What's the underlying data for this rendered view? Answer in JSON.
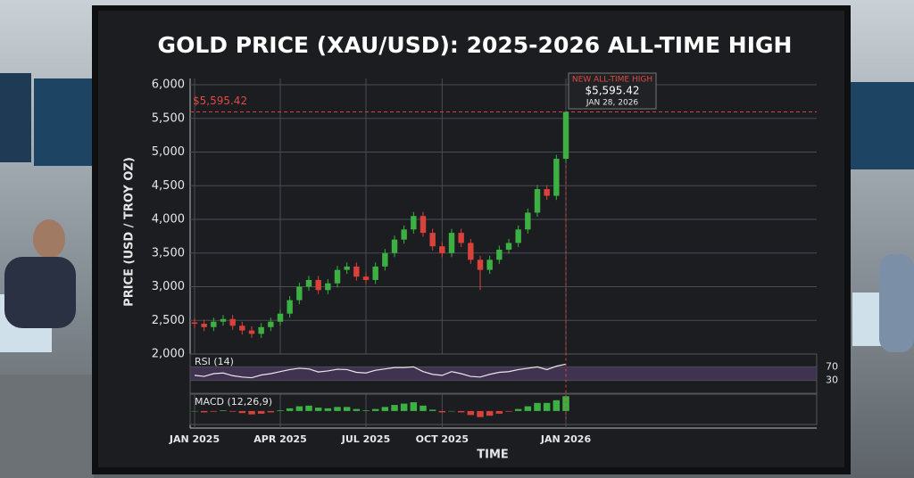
{
  "chart_data": {
    "type": "candlestick",
    "title": "GOLD PRICE (XAU/USD): 2025-2026 ALL-TIME HIGH",
    "y_label": "PRICE (USD / TROY OZ)",
    "x_label": "TIME",
    "categories": [
      "JAN 2025",
      null,
      null,
      null,
      null,
      null,
      null,
      null,
      null,
      "APR 2025",
      null,
      null,
      null,
      null,
      null,
      null,
      null,
      null,
      "JUL 2025",
      null,
      null,
      null,
      null,
      null,
      null,
      null,
      "OCT 2025",
      null,
      null,
      null,
      null,
      null,
      null,
      null,
      null,
      null,
      null,
      null,
      null,
      "JAN 2026"
    ],
    "open": [
      2470,
      2450,
      2400,
      2480,
      2520,
      2420,
      2350,
      2300,
      2400,
      2480,
      2600,
      2800,
      3000,
      3100,
      2950,
      3050,
      3250,
      3300,
      3150,
      3100,
      3300,
      3500,
      3700,
      3850,
      4050,
      3800,
      3600,
      3500,
      3800,
      3650,
      3400,
      3250,
      3400,
      3550,
      3650,
      3850,
      4100,
      4450,
      4350,
      4900
    ],
    "high": [
      2530,
      2510,
      2540,
      2580,
      2580,
      2480,
      2410,
      2460,
      2540,
      2660,
      2860,
      3060,
      3160,
      3160,
      3110,
      3310,
      3360,
      3360,
      3210,
      3360,
      3560,
      3760,
      3910,
      4110,
      4110,
      3860,
      3660,
      3860,
      3860,
      3710,
      3460,
      3460,
      3610,
      3710,
      3910,
      4160,
      4510,
      4510,
      4960,
      5595.42
    ],
    "low": [
      2390,
      2340,
      2340,
      2420,
      2360,
      2290,
      2240,
      2240,
      2340,
      2420,
      2540,
      2740,
      2940,
      2890,
      2890,
      2990,
      3190,
      3090,
      3040,
      3040,
      3240,
      3440,
      3640,
      3790,
      3740,
      3540,
      3440,
      3440,
      3590,
      3340,
      2950,
      3190,
      3340,
      3490,
      3590,
      3790,
      4040,
      4290,
      4290,
      4840
    ],
    "close": [
      2450,
      2400,
      2480,
      2520,
      2420,
      2350,
      2300,
      2400,
      2480,
      2600,
      2800,
      3000,
      3100,
      2950,
      3050,
      3250,
      3300,
      3150,
      3100,
      3300,
      3500,
      3700,
      3850,
      4050,
      3800,
      3600,
      3500,
      3800,
      3650,
      3400,
      3250,
      3400,
      3550,
      3650,
      3850,
      4100,
      4450,
      4350,
      4900,
      5595.42
    ],
    "up_color": "#3cb043",
    "down_color": "#d9423a",
    "ylim": [
      2000,
      6000
    ],
    "yticks": [
      {
        "value": 2000,
        "label": "2,000"
      },
      {
        "value": 2500,
        "label": "2,500"
      },
      {
        "value": 3000,
        "label": "3,000"
      },
      {
        "value": 3500,
        "label": "3,500"
      },
      {
        "value": 4000,
        "label": "4,000"
      },
      {
        "value": 4500,
        "label": "4,500"
      },
      {
        "value": 5000,
        "label": "5,000"
      },
      {
        "value": 5500,
        "label": "5,500"
      },
      {
        "value": 6000,
        "label": "6,000"
      }
    ],
    "grid": true,
    "ath": {
      "title": "NEW ALL-TIME HIGH",
      "value": 5595.42,
      "label": "$5,595.42",
      "date": "JAN 28, 2026"
    },
    "rsi": {
      "label": "RSI (14)",
      "color": "#e8e8e8",
      "values": [
        45,
        42,
        50,
        52,
        44,
        40,
        38,
        46,
        50,
        56,
        62,
        66,
        64,
        55,
        58,
        63,
        62,
        54,
        52,
        60,
        64,
        68,
        68,
        70,
        56,
        48,
        45,
        56,
        50,
        42,
        40,
        48,
        54,
        56,
        62,
        66,
        70,
        62,
        72,
        78
      ],
      "ylim": [
        0,
        100
      ],
      "yticks": [
        30,
        70
      ]
    },
    "macd": {
      "label": "MACD (12,26,9)",
      "values": [
        0,
        -2,
        -1,
        1,
        -1,
        -3,
        -5,
        -4,
        -2,
        1,
        4,
        7,
        8,
        5,
        4,
        6,
        6,
        3,
        1,
        3,
        6,
        9,
        11,
        13,
        8,
        2,
        -2,
        0,
        -2,
        -6,
        -9,
        -7,
        -4,
        -1,
        3,
        7,
        12,
        12,
        16,
        22
      ],
      "ylim": [
        -20,
        25
      ]
    }
  }
}
